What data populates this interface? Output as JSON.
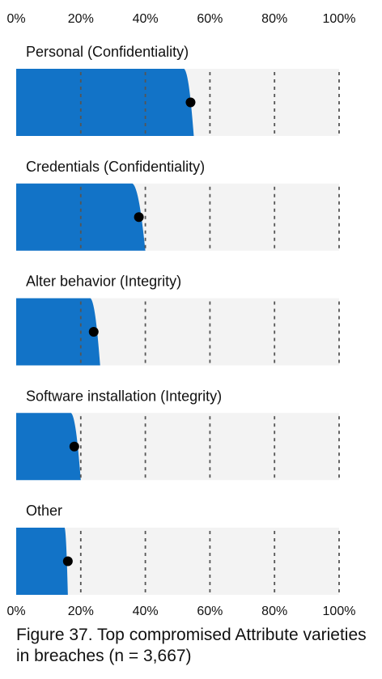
{
  "chart_data": {
    "type": "bar",
    "style": "slanted-interval-bar-with-point",
    "x_ticks": [
      "0%",
      "20%",
      "40%",
      "60%",
      "80%",
      "100%"
    ],
    "xlim": [
      0,
      100
    ],
    "categories": [
      "Personal (Confidentiality)",
      "Credentials (Confidentiality)",
      "Alter behavior (Integrity)",
      "Software installation (Integrity)",
      "Other"
    ],
    "values": [
      54,
      38,
      24,
      18,
      16
    ],
    "interval_low": [
      52,
      36,
      23,
      17,
      15
    ],
    "interval_high": [
      55,
      40,
      26,
      20,
      16
    ],
    "colors": {
      "bar": "#1273c7",
      "background": "#f3f3f3",
      "point": "#000000",
      "grid": "#555555"
    }
  },
  "caption": "Figure 37. Top compromised Attribute varieties in breaches (n = 3,667)"
}
